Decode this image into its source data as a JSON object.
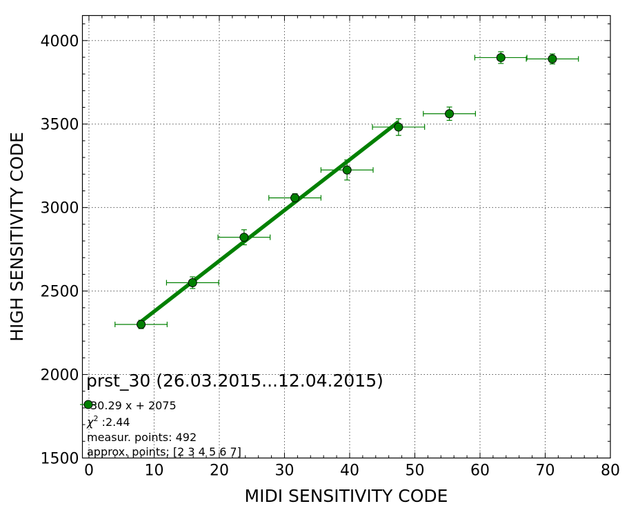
{
  "chart_data": {
    "type": "scatter",
    "title": "",
    "xlabel": "MIDI SENSITIVITY CODE",
    "ylabel": "HIGH SENSITIVITY CODE",
    "xlim": [
      -1,
      80
    ],
    "ylim": [
      1500,
      4150
    ],
    "x_ticks": [
      0,
      10,
      20,
      30,
      40,
      50,
      60,
      70,
      80
    ],
    "y_ticks": [
      1500,
      2000,
      2500,
      3000,
      3500,
      4000
    ],
    "grid": true,
    "colors": {
      "series": "#008000",
      "frame": "#000000",
      "grid": "#555555"
    },
    "series": [
      {
        "type": "errorbar",
        "marker": "circle",
        "points": [
          {
            "x": 8.0,
            "y": 2300,
            "xerr": 4.0,
            "yerr": 25
          },
          {
            "x": 15.9,
            "y": 2550,
            "xerr": 4.0,
            "yerr": 35
          },
          {
            "x": 23.8,
            "y": 2822,
            "xerr": 4.0,
            "yerr": 45
          },
          {
            "x": 31.6,
            "y": 3058,
            "xerr": 4.0,
            "yerr": 25
          },
          {
            "x": 39.6,
            "y": 3225,
            "xerr": 4.0,
            "yerr": 60
          },
          {
            "x": 47.5,
            "y": 3482,
            "xerr": 4.0,
            "yerr": 50
          },
          {
            "x": 55.3,
            "y": 3562,
            "xerr": 4.0,
            "yerr": 40
          },
          {
            "x": 63.2,
            "y": 3898,
            "xerr": 4.0,
            "yerr": 35
          },
          {
            "x": 71.1,
            "y": 3890,
            "xerr": 4.0,
            "yerr": 30
          }
        ]
      },
      {
        "type": "line",
        "fit": {
          "slope": 30.29,
          "intercept": 2075
        },
        "x": [
          8.0,
          47.5
        ],
        "y": [
          2317,
          3514
        ]
      }
    ],
    "annotations": {
      "panel_title": "prst_30 (26.03.2015...12.04.2015)",
      "legend_fit": "30.29 x + 2075",
      "chi2_symbol": "χ",
      "chi2_sup": "2",
      "chi2": " :2.44",
      "points": "measur. points: 492",
      "approx": "approx. points: [2 3 4 5 6 7]"
    }
  }
}
